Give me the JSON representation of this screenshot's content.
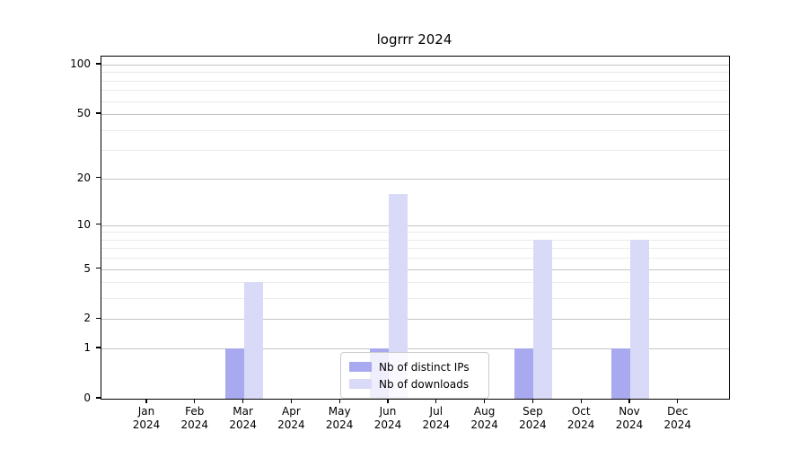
{
  "chart_data": {
    "type": "bar",
    "title": "logrrr 2024",
    "categories": [
      "Jan\n2024",
      "Feb\n2024",
      "Mar\n2024",
      "Apr\n2024",
      "May\n2024",
      "Jun\n2024",
      "Jul\n2024",
      "Aug\n2024",
      "Sep\n2024",
      "Oct\n2024",
      "Nov\n2024",
      "Dec\n2024"
    ],
    "series": [
      {
        "name": "Nb of distinct IPs",
        "color": "#a9a9f0",
        "values": [
          0,
          0,
          1,
          0,
          0,
          1,
          0,
          0,
          1,
          0,
          1,
          0
        ]
      },
      {
        "name": "Nb of downloads",
        "color": "#d9d9f8",
        "values": [
          0,
          0,
          4,
          0,
          0,
          16,
          0,
          0,
          8,
          0,
          8,
          0
        ]
      }
    ],
    "xlabel": "",
    "ylabel": "",
    "yscale": "log1p",
    "ylim": [
      0,
      112
    ],
    "yticks": [
      0,
      1,
      2,
      5,
      10,
      20,
      50,
      100
    ],
    "ytick_labels": [
      "0",
      "1",
      "2",
      "5",
      "10",
      "20",
      "50",
      "100"
    ],
    "yticks_minor": [
      3,
      4,
      6,
      7,
      8,
      9,
      30,
      40,
      60,
      70,
      80,
      90
    ],
    "grid": "on",
    "legend_position": "lower center",
    "colors": {
      "background": "#ffffff",
      "spine": "#000000",
      "major_grid": "#c4c4c4",
      "minor_grid": "#eaeaea",
      "legend_border": "#cccccc",
      "text": "#000000"
    }
  }
}
